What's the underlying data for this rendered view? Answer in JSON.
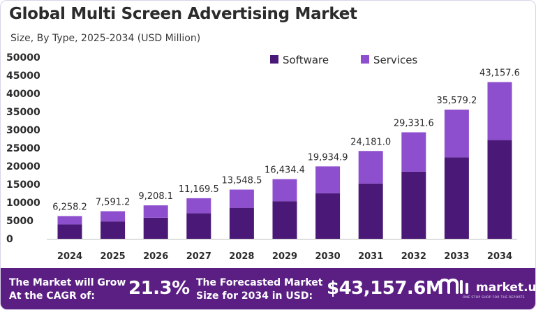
{
  "header": {
    "title": "Global Multi Screen Advertising Market",
    "subtitle": "Size, By Type, 2025-2034 (USD Million)"
  },
  "chart_data": {
    "type": "bar",
    "stacked": true,
    "categories": [
      "2024",
      "2025",
      "2026",
      "2027",
      "2028",
      "2029",
      "2030",
      "2031",
      "2032",
      "2033",
      "2034"
    ],
    "series": [
      {
        "name": "Software",
        "color": "#4a1978",
        "values": [
          3950,
          4780,
          5800,
          7040,
          8530,
          10350,
          12560,
          15230,
          18480,
          22420,
          27190
        ]
      },
      {
        "name": "Services",
        "color": "#8e4fce",
        "values": [
          2308.2,
          2811.2,
          3408.1,
          4129.5,
          5018.5,
          6084.4,
          7374.9,
          8951.0,
          10851.6,
          13159.2,
          15967.6
        ]
      }
    ],
    "totals": [
      "6,258.2",
      "7,591.2",
      "9,208.1",
      "11,169.5",
      "13,548.5",
      "16,434.4",
      "19,934.9",
      "24,181.0",
      "29,331.6",
      "35,579.2",
      "43,157.6"
    ],
    "yticks": [
      "0",
      "5000",
      "10000",
      "15000",
      "20000",
      "25000",
      "30000",
      "35000",
      "40000",
      "45000",
      "50000"
    ],
    "ylim": [
      0,
      50000
    ],
    "legend_position": "top-center",
    "grid": false
  },
  "footer": {
    "cagr_label_line1": "The Market will Grow",
    "cagr_label_line2": "At the CAGR of:",
    "cagr_value": "21.3%",
    "forecast_label_line1": "The Forecasted Market",
    "forecast_label_line2": "Size for 2034 in USD:",
    "forecast_value": "$43,157.6M",
    "brand": "market.us",
    "tagline": "ONE STOP SHOP FOR THE REPORTS"
  }
}
